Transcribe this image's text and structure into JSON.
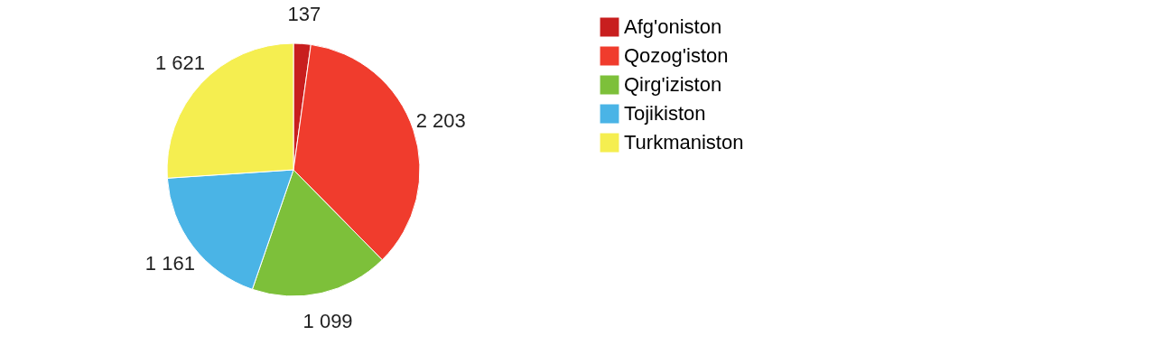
{
  "chart_data": {
    "type": "pie",
    "categories": [
      "Afg'oniston",
      "Qozog'iston",
      "Qirg'iziston",
      "Tojikiston",
      "Turkmaniston"
    ],
    "values": [
      137,
      2203,
      1099,
      1161,
      1621
    ],
    "value_labels": [
      "137",
      "2 203",
      "1 099",
      "1 161",
      "1 621"
    ],
    "colors": [
      "#c81e1e",
      "#f03c2d",
      "#7dc03a",
      "#4ab4e6",
      "#f5ee50"
    ],
    "legend": "right"
  }
}
